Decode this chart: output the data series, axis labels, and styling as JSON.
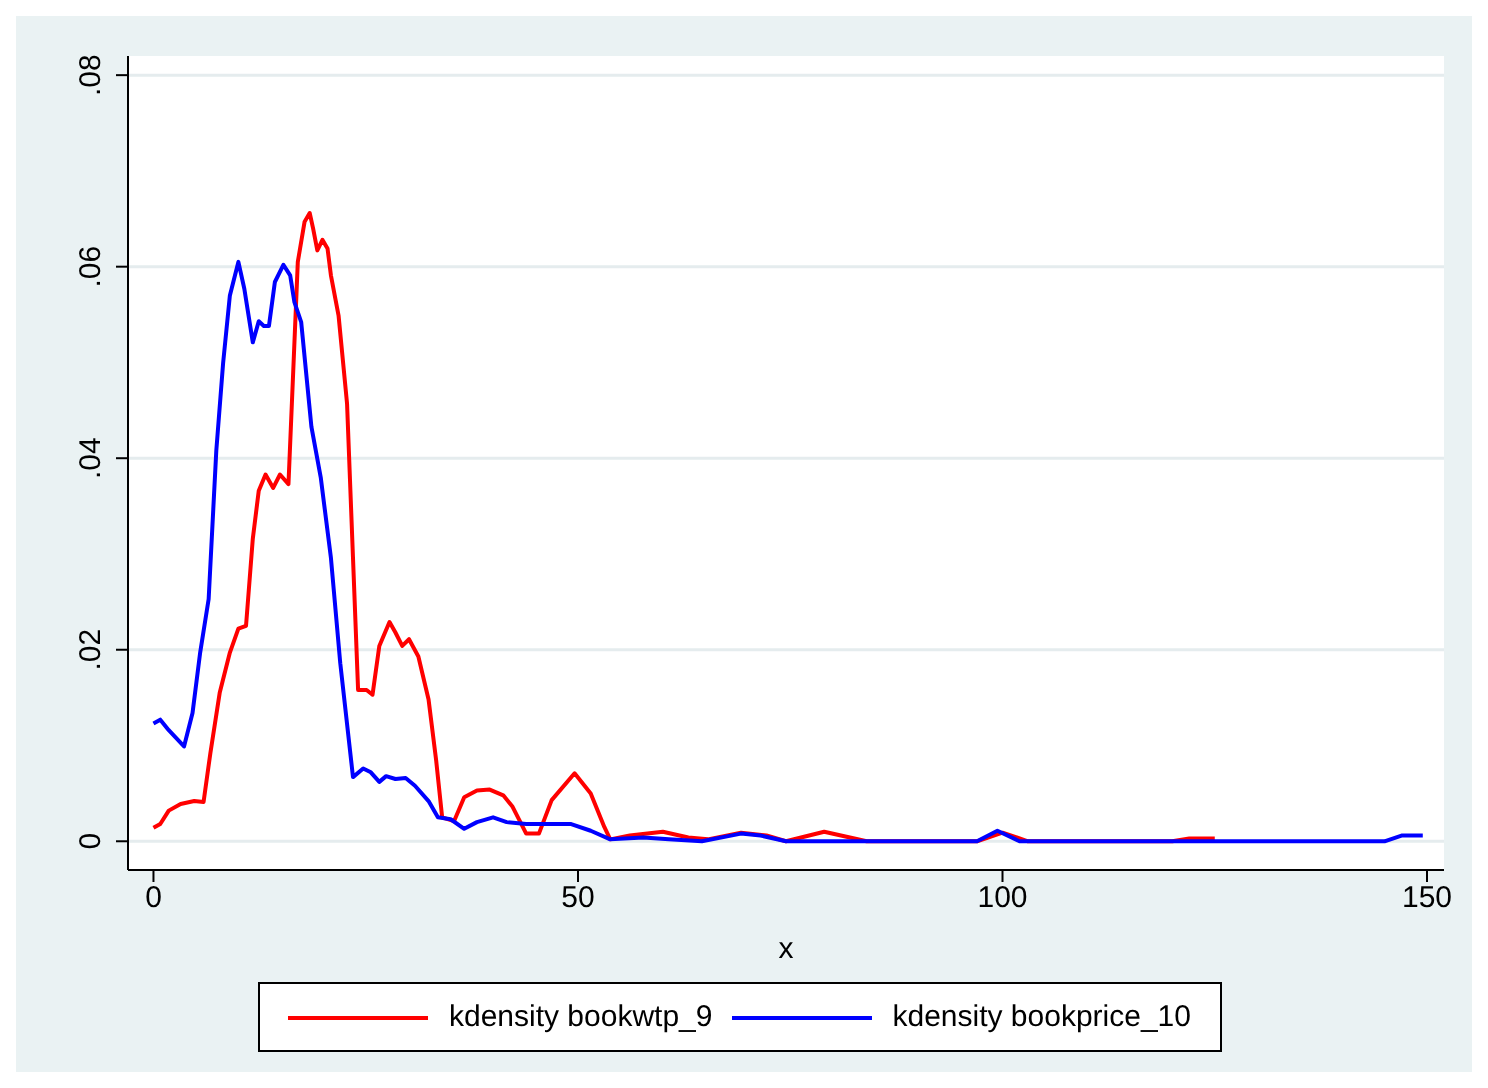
{
  "chart_data": {
    "type": "line",
    "xlabel": "x",
    "xlim": [
      -3,
      152
    ],
    "xticks": [
      0,
      50,
      100,
      150
    ],
    "ylim": [
      -0.003,
      0.082
    ],
    "yticks": [
      {
        "value": 0,
        "label": "0"
      },
      {
        "value": 0.02,
        "label": ".02"
      },
      {
        "value": 0.04,
        "label": ".04"
      },
      {
        "value": 0.06,
        "label": ".06"
      },
      {
        "value": 0.08,
        "label": ".08"
      }
    ],
    "grid": "y",
    "legend": "bottom",
    "marker": "none",
    "line_style": "solid",
    "series": [
      {
        "name": "kdensity bookwtp_9",
        "color": "#ff0000",
        "x": [
          0,
          0.8,
          1.8,
          3.2,
          4.8,
          5.9,
          6.7,
          7.8,
          9,
          10,
          10.9,
          11.7,
          12.4,
          13.2,
          14.1,
          14.9,
          15.9,
          16.4,
          17,
          17.8,
          18.4,
          18.8,
          19.3,
          19.9,
          20.5,
          20.9,
          21.8,
          22.8,
          23.5,
          24.1,
          25.1,
          25.8,
          26.6,
          27.8,
          28.5,
          29.3,
          30.1,
          31.2,
          32.4,
          33.3,
          34,
          35.4,
          36.6,
          38.1,
          39.6,
          41.2,
          42.3,
          43.9,
          45.4,
          46.9,
          49.6,
          51.5,
          53.1,
          53.8,
          56.1,
          60,
          63,
          65.3,
          69.2,
          72.2,
          74.5,
          79,
          84,
          97,
          100,
          103,
          120,
          122,
          125
        ],
        "values": [
          0.0014,
          0.0018,
          0.0032,
          0.0039,
          0.0042,
          0.0041,
          0.0092,
          0.0155,
          0.0197,
          0.0222,
          0.0225,
          0.0316,
          0.0366,
          0.0383,
          0.0369,
          0.0383,
          0.0373,
          0.0478,
          0.0605,
          0.0647,
          0.0656,
          0.064,
          0.0617,
          0.0628,
          0.0619,
          0.0591,
          0.0549,
          0.0457,
          0.0296,
          0.0158,
          0.0158,
          0.0153,
          0.0204,
          0.0229,
          0.0218,
          0.0204,
          0.0211,
          0.0193,
          0.0148,
          0.0084,
          0.0025,
          0.0021,
          0.0046,
          0.0053,
          0.0054,
          0.0048,
          0.0036,
          0.0008,
          0.0008,
          0.0043,
          0.0071,
          0.005,
          0.0015,
          0.0002,
          0.0006,
          0.001,
          0.0004,
          0.0002,
          0.0009,
          0.0006,
          0,
          0.001,
          0,
          0,
          0.0009,
          0,
          0,
          0.0003,
          0.0003
        ]
      },
      {
        "name": "kdensity bookprice_10",
        "color": "#0000ff",
        "x": [
          0,
          0.8,
          1.8,
          3.6,
          4.6,
          5.5,
          6.5,
          7.4,
          8.2,
          9,
          10,
          10.7,
          11.7,
          12.4,
          13,
          13.6,
          14.3,
          15.3,
          16.1,
          16.6,
          17.4,
          18.6,
          19.7,
          20.9,
          22,
          23.5,
          24.7,
          25.6,
          26.6,
          27.4,
          28.5,
          29.7,
          30.8,
          32.4,
          33.5,
          35,
          36.6,
          38.1,
          40,
          41.6,
          43.9,
          49.2,
          51.5,
          53.8,
          57.7,
          60.7,
          64.6,
          69.2,
          71.5,
          74.5,
          97,
          99.4,
          102,
          145,
          147,
          149.5
        ],
        "values": [
          0.0123,
          0.0127,
          0.0116,
          0.0099,
          0.0134,
          0.0197,
          0.0253,
          0.0408,
          0.0499,
          0.057,
          0.0605,
          0.0577,
          0.0521,
          0.0543,
          0.0538,
          0.0538,
          0.0584,
          0.0602,
          0.0591,
          0.0563,
          0.0542,
          0.0433,
          0.038,
          0.0296,
          0.0186,
          0.0067,
          0.0076,
          0.0072,
          0.0062,
          0.0068,
          0.0065,
          0.0066,
          0.0058,
          0.0042,
          0.0025,
          0.0023,
          0.0013,
          0.002,
          0.0025,
          0.002,
          0.0018,
          0.0018,
          0.0011,
          0.0002,
          0.0004,
          0.0002,
          0,
          0.0008,
          0.0006,
          0,
          0,
          0.0011,
          0,
          0,
          0.0006,
          0.0006
        ]
      }
    ]
  }
}
